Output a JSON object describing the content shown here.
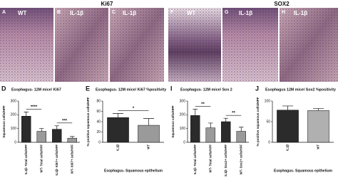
{
  "headers": [
    "Ki67",
    "SOX2"
  ],
  "panels": [
    {
      "letter": "A",
      "label": "WT"
    },
    {
      "letter": "B",
      "label": "IL-1β"
    },
    {
      "letter": "C",
      "label": "IL-1β"
    },
    {
      "letter": "F",
      "label": "WT"
    },
    {
      "letter": "G",
      "label": "IL-1β"
    },
    {
      "letter": "H",
      "label": "IL-1β"
    }
  ],
  "chart_data": [
    {
      "type": "bar",
      "letter": "D",
      "title": "Esophagus- 12M mice/ Ki67",
      "ylabel": "Squamous cells/HPF",
      "categories": [
        "IL1β- Total cells/HPF",
        "WT- Total cells/HPF",
        "IL1β- Ki67+ cells/HPF",
        "WT- Ki67+ cells/HPF"
      ],
      "values": [
        190,
        80,
        95,
        30
      ],
      "errors": [
        30,
        20,
        25,
        12
      ],
      "colors": [
        "#2b2b2b",
        "#9a9a9a",
        "#2b2b2b",
        "#9a9a9a"
      ],
      "ylim": [
        0,
        300
      ],
      "yticks": [
        0,
        100,
        200,
        300
      ],
      "significance": [
        "****",
        "***"
      ]
    },
    {
      "type": "bar",
      "letter": "E",
      "title": "Esophagus- 12M mice/ Ki67 %positivity",
      "ylabel": "% positive squamous cells/HPF",
      "xlabel": "Esophagus- Squamous epithelium",
      "categories": [
        "IL1β",
        "WT"
      ],
      "values": [
        48,
        33
      ],
      "errors": [
        8,
        13
      ],
      "colors": [
        "#2b2b2b",
        "#9a9a9a"
      ],
      "ylim": [
        0,
        80
      ],
      "yticks": [
        0,
        20,
        40,
        60,
        80
      ],
      "significance": [
        "*"
      ]
    },
    {
      "type": "bar",
      "letter": "I",
      "title": "Esophagus- 12M mice/ Sox 2",
      "ylabel": "Squamous cells/HPF",
      "categories": [
        "IL1β- Total cells/HPF",
        "WT- Total cells/HPF",
        "IL1β- Sox2+ cells/HPF",
        "WT- Sox2+ cells/HPF"
      ],
      "values": [
        195,
        105,
        150,
        80
      ],
      "errors": [
        45,
        35,
        25,
        30
      ],
      "colors": [
        "#2b2b2b",
        "#9a9a9a",
        "#2b2b2b",
        "#9a9a9a"
      ],
      "ylim": [
        0,
        300
      ],
      "yticks": [
        0,
        100,
        200,
        300
      ],
      "significance": [
        "**",
        "**"
      ]
    },
    {
      "type": "bar",
      "letter": "J",
      "title": "Esophagus 12M mice/ Sox2 %positivity",
      "ylabel": "% positive squamous cells/HPF",
      "xlabel": "Esophagus- Squamous epithelium",
      "categories": [
        "IL1β",
        "WT"
      ],
      "values": [
        78,
        77
      ],
      "errors": [
        10,
        5
      ],
      "colors": [
        "#2b2b2b",
        "#b0b0b0"
      ],
      "ylim": [
        0,
        100
      ],
      "yticks": [
        0,
        50,
        100
      ],
      "significance": []
    }
  ]
}
